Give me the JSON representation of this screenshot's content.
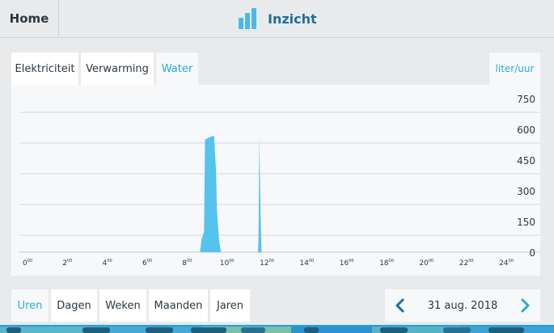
{
  "header": {
    "home_label": "Home",
    "title": "Inzicht",
    "title_icon": "bar-chart-icon"
  },
  "tabs": [
    {
      "label": "Elektriciteit",
      "active": false
    },
    {
      "label": "Verwarming",
      "active": false
    },
    {
      "label": "Water",
      "active": true
    }
  ],
  "unit_label": "liter/uur",
  "period_tabs": [
    {
      "label": "Uren",
      "active": true
    },
    {
      "label": "Dagen",
      "active": false
    },
    {
      "label": "Weken",
      "active": false
    },
    {
      "label": "Maanden",
      "active": false
    },
    {
      "label": "Jaren",
      "active": false
    }
  ],
  "date_nav": {
    "date": "31 aug. 2018",
    "prev_icon": "chevron-left-icon",
    "next_icon": "chevron-right-icon"
  },
  "colors": {
    "accent": "#2aa9dc",
    "fill": "#56c2ee",
    "title": "#1f6e9b"
  },
  "chart_data": {
    "type": "area",
    "title": "",
    "xlabel": "",
    "ylabel": "liter/uur",
    "ylim": [
      0,
      750
    ],
    "xlim": [
      0,
      24
    ],
    "y_ticks": [
      "750",
      "600",
      "450",
      "300",
      "150",
      "0"
    ],
    "x_ticks": [
      {
        "h": "0",
        "m": "00"
      },
      {
        "h": "2",
        "m": "00"
      },
      {
        "h": "4",
        "m": "00"
      },
      {
        "h": "6",
        "m": "00"
      },
      {
        "h": "8",
        "m": "00"
      },
      {
        "h": "10",
        "m": "00"
      },
      {
        "h": "12",
        "m": "00"
      },
      {
        "h": "14",
        "m": "00"
      },
      {
        "h": "16",
        "m": "00"
      },
      {
        "h": "18",
        "m": "00"
      },
      {
        "h": "20",
        "m": "00"
      },
      {
        "h": "22",
        "m": "00"
      },
      {
        "h": "24",
        "m": "00"
      }
    ],
    "grid": true,
    "series": [
      {
        "x": [
          0,
          8.65,
          8.72,
          8.85,
          8.9,
          9.1,
          9.35,
          9.45,
          9.5,
          9.6,
          9.7,
          11.55,
          11.58,
          11.62,
          11.68,
          11.73,
          24
        ],
        "y": [
          0,
          0,
          60,
          100,
          550,
          560,
          570,
          400,
          200,
          60,
          0,
          0,
          60,
          560,
          200,
          0,
          0
        ]
      }
    ]
  }
}
